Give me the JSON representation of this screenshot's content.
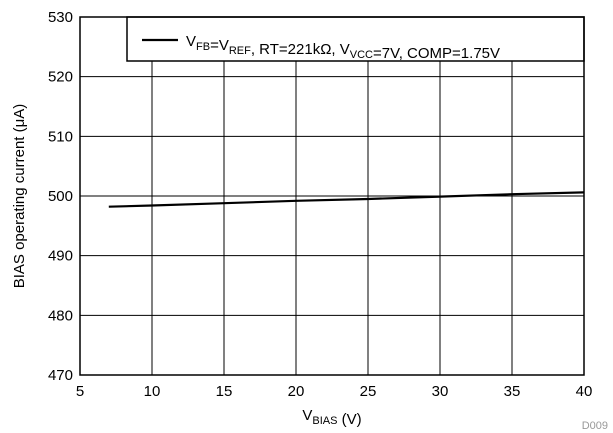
{
  "chart_data": {
    "type": "line",
    "x": [
      7,
      10,
      15,
      20,
      25,
      30,
      35,
      40
    ],
    "series": [
      {
        "name": "VFB=VREF, RT=221kΩ, VVCC=7V, COMP=1.75V",
        "values": [
          498.2,
          498.4,
          498.8,
          499.2,
          499.5,
          499.9,
          500.3,
          500.6
        ]
      }
    ],
    "xlim": [
      5,
      40
    ],
    "ylim": [
      470,
      530
    ],
    "x_ticks": [
      5,
      10,
      15,
      20,
      25,
      30,
      35,
      40
    ],
    "y_ticks": [
      470,
      480,
      490,
      500,
      510,
      520,
      530
    ],
    "xlabel": {
      "main": "V",
      "sub": "BIAS",
      "rest": " (V)"
    },
    "ylabel": "BIAS operating current (μA)",
    "grid": true,
    "legend_position": "top-right",
    "legend": [
      {
        "main": "V",
        "sub": "FB"
      },
      {
        "main": "=V",
        "sub": "REF"
      },
      {
        "main": ", RT=221kΩ, V",
        "sub": "VCC"
      },
      {
        "main": "=7V, COMP=1.75V",
        "sub": ""
      }
    ],
    "figure_id": "D009",
    "line_color": "#000000"
  }
}
